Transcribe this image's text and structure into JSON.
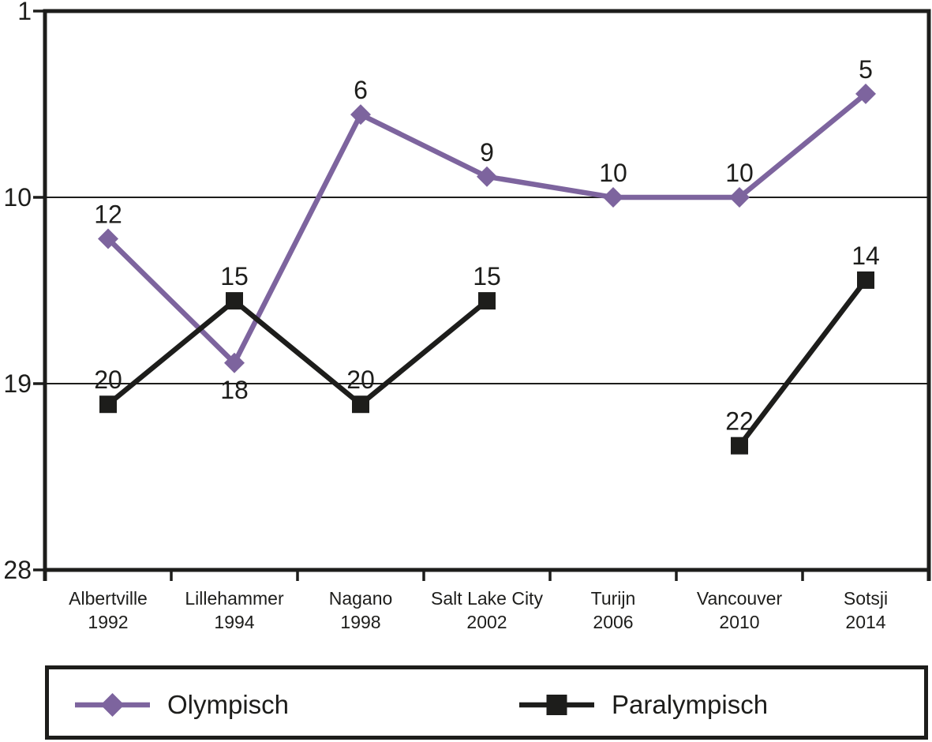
{
  "chart_data": {
    "type": "line",
    "title": "",
    "background": "#FFFFFF",
    "ink_color": "#1D1D1B",
    "grid": "horizontal-only",
    "categories": [
      {
        "city": "Albertville",
        "year": "1992"
      },
      {
        "city": "Lillehammer",
        "year": "1994"
      },
      {
        "city": "Nagano",
        "year": "1998"
      },
      {
        "city": "Salt Lake City",
        "year": "2002"
      },
      {
        "city": "Turijn",
        "year": "2006"
      },
      {
        "city": "Vancouver",
        "year": "2010"
      },
      {
        "city": "Sotsji",
        "year": "2014"
      }
    ],
    "series": [
      {
        "name": "Olympisch",
        "marker": "diamond",
        "color": "#7D649E",
        "values": [
          12,
          18,
          6,
          9,
          10,
          10,
          5
        ],
        "label_below_indices": [
          1
        ]
      },
      {
        "name": "Paralympisch",
        "marker": "square",
        "color": "#1D1D1B",
        "values": [
          20,
          15,
          20,
          15,
          null,
          22,
          14
        ],
        "label_below_indices": []
      }
    ],
    "y_axis": {
      "min": 1,
      "max": 28,
      "inverted": true,
      "tick_labels": [
        1,
        10,
        19,
        28
      ],
      "gridline_ticks": [
        10,
        19
      ]
    },
    "legend": {
      "position": "bottom-box",
      "entries": [
        "Olympisch",
        "Paralympisch"
      ]
    }
  }
}
